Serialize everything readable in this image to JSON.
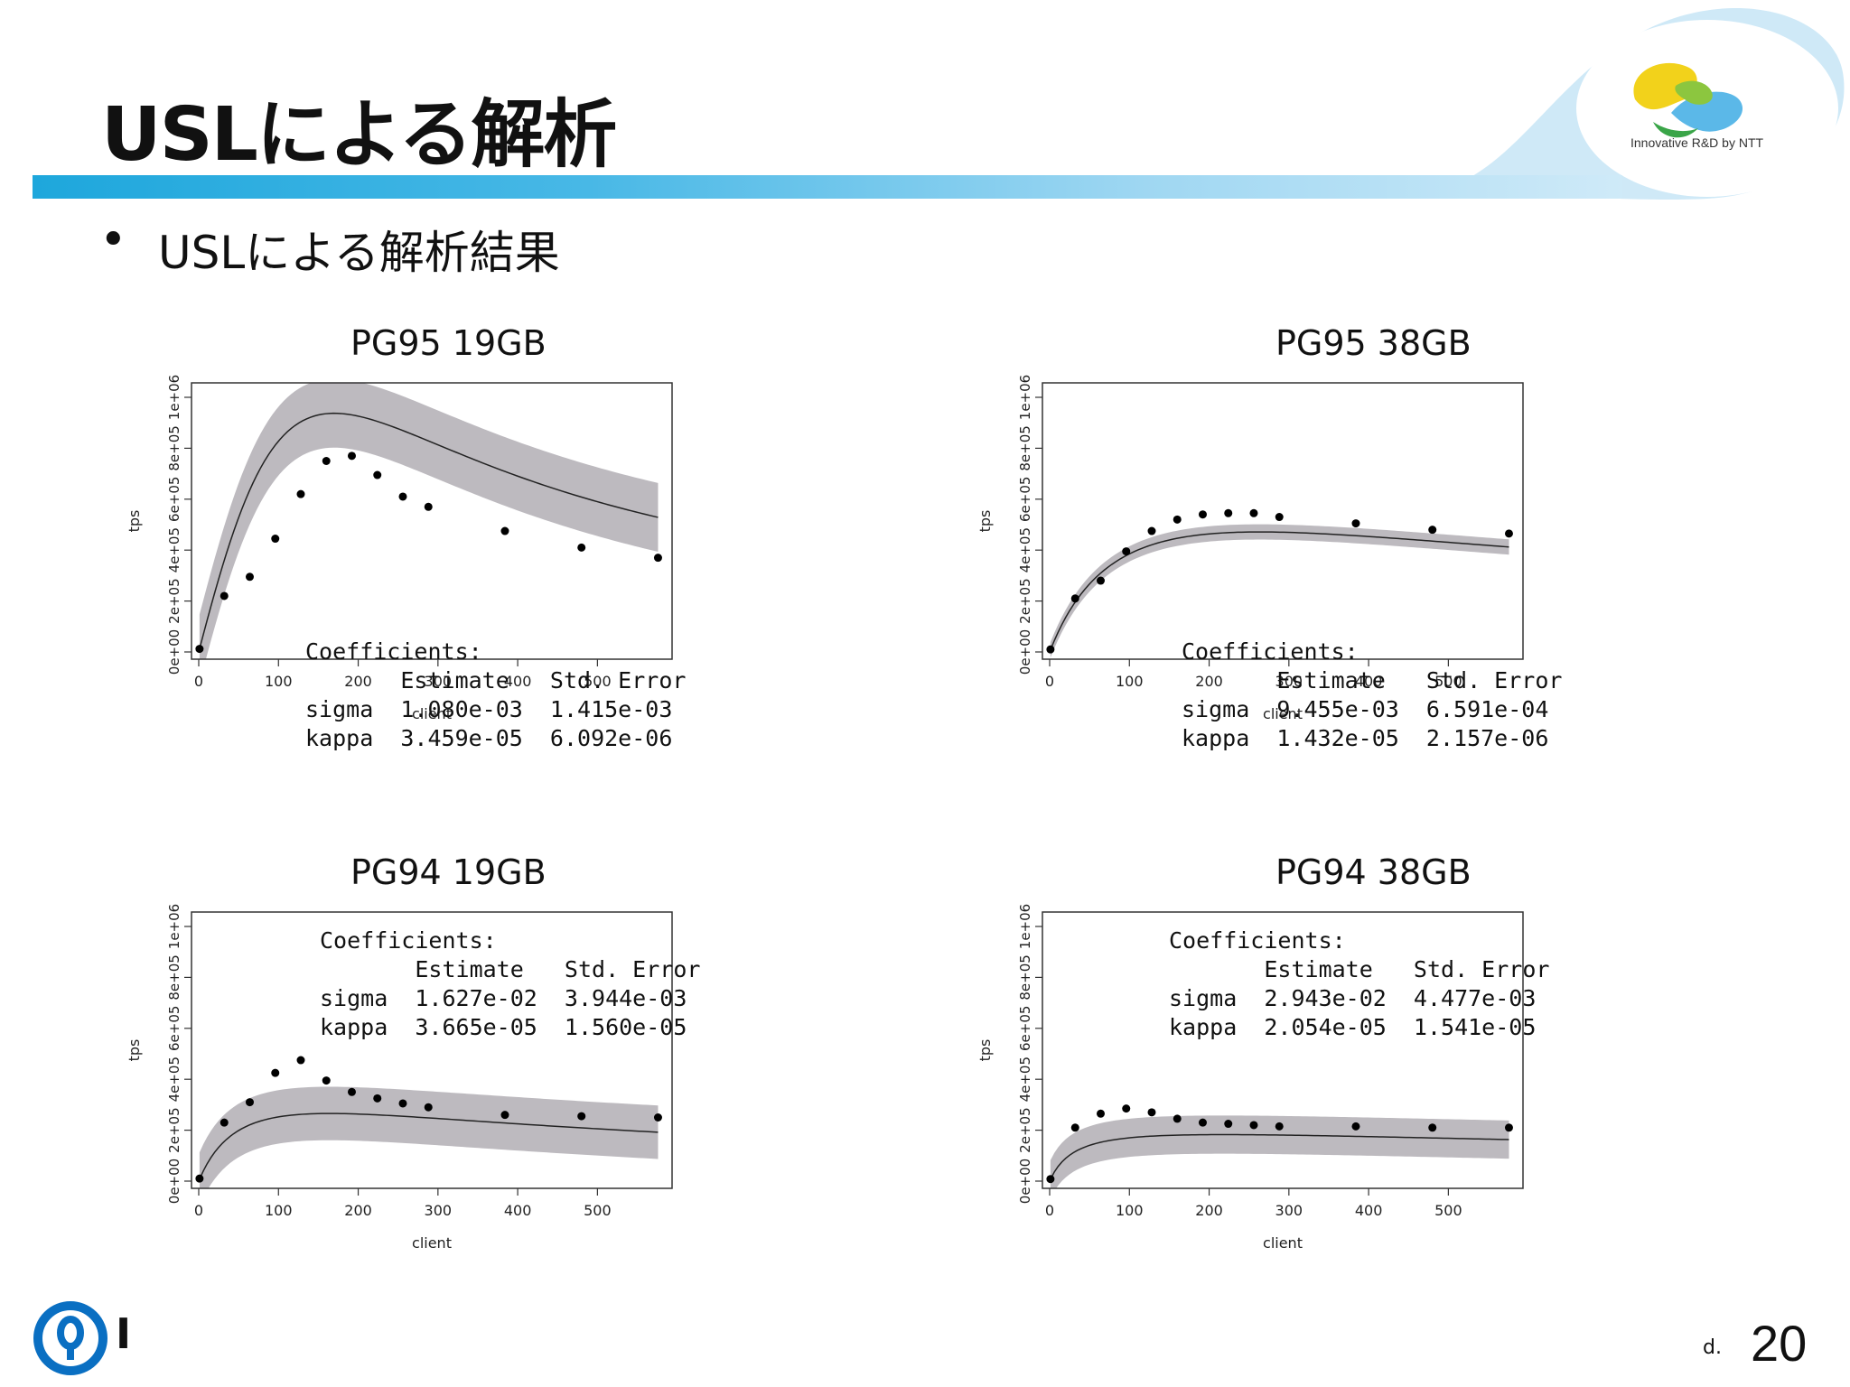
{
  "slide": {
    "title": "USLによる解析",
    "bullet": "USLによる解析結果",
    "logo_text": "Innovative R&D by NTT",
    "footer_char": "I",
    "footer_mark": "d.",
    "page_number": "20"
  },
  "chart_data": [
    {
      "type": "scatter",
      "title": "PG95 19GB",
      "xlabel": "client",
      "ylabel": "tps",
      "xlim": [
        0,
        580
      ],
      "ylim": [
        0,
        1000000
      ],
      "x_ticks": [
        "0",
        "100",
        "200",
        "300",
        "400",
        "500"
      ],
      "y_ticks": [
        "0e+00",
        "2e+05",
        "4e+05",
        "6e+05",
        "8e+05",
        "1e+06"
      ],
      "x": [
        1,
        32,
        64,
        96,
        128,
        160,
        192,
        224,
        256,
        288,
        384,
        480,
        576
      ],
      "y": [
        12000,
        220000,
        295000,
        445000,
        620000,
        750000,
        770000,
        695000,
        610000,
        570000,
        475000,
        410000,
        370000
      ],
      "model": {
        "lambda": 12000,
        "sigma": 0.00108,
        "kappa": 3.459e-05,
        "band_halfwidth": 135000
      },
      "coefficients": {
        "heading": "Coefficients:",
        "columns": [
          "Estimate",
          "Std. Error"
        ],
        "rows": [
          {
            "name": "sigma",
            "estimate": "1.080e-03",
            "std_error": "1.415e-03"
          },
          {
            "name": "kappa",
            "estimate": "3.459e-05",
            "std_error": "6.092e-06"
          }
        ],
        "placement": "bottom-left"
      }
    },
    {
      "type": "scatter",
      "title": "PG95 38GB",
      "xlabel": "client",
      "ylabel": "tps",
      "xlim": [
        0,
        580
      ],
      "ylim": [
        0,
        1000000
      ],
      "x_ticks": [
        "0",
        "100",
        "200",
        "300",
        "400",
        "500"
      ],
      "y_ticks": [
        "0e+00",
        "2e+05",
        "4e+05",
        "6e+05",
        "8e+05",
        "1e+06"
      ],
      "x": [
        1,
        32,
        64,
        96,
        128,
        160,
        192,
        224,
        256,
        288,
        384,
        480,
        576
      ],
      "y": [
        10000,
        210000,
        280000,
        395000,
        475000,
        520000,
        540000,
        545000,
        545000,
        530000,
        505000,
        480000,
        465000
      ],
      "model": {
        "lambda": 8000,
        "sigma": 0.009455,
        "kappa": 1.432e-05,
        "band_halfwidth": 30000
      },
      "coefficients": {
        "heading": "Coefficients:",
        "columns": [
          "Estimate",
          "Std. Error"
        ],
        "rows": [
          {
            "name": "sigma",
            "estimate": "9.455e-03",
            "std_error": "6.591e-04"
          },
          {
            "name": "kappa",
            "estimate": "1.432e-05",
            "std_error": "2.157e-06"
          }
        ],
        "placement": "bottom-left"
      }
    },
    {
      "type": "scatter",
      "title": "PG94 19GB",
      "xlabel": "client",
      "ylabel": "tps",
      "xlim": [
        0,
        580
      ],
      "ylim": [
        0,
        1000000
      ],
      "x_ticks": [
        "0",
        "100",
        "200",
        "300",
        "400",
        "500"
      ],
      "y_ticks": [
        "0e+00",
        "2e+05",
        "4e+05",
        "6e+05",
        "8e+05",
        "1e+06"
      ],
      "x": [
        1,
        32,
        64,
        96,
        128,
        160,
        192,
        224,
        256,
        288,
        384,
        480,
        576
      ],
      "y": [
        10000,
        230000,
        310000,
        425000,
        475000,
        395000,
        350000,
        325000,
        305000,
        290000,
        260000,
        255000,
        250000
      ],
      "model": {
        "lambda": 7500,
        "sigma": 0.01627,
        "kappa": 3.665e-05,
        "band_halfwidth": 105000
      },
      "coefficients": {
        "heading": "Coefficients:",
        "columns": [
          "Estimate",
          "Std. Error"
        ],
        "rows": [
          {
            "name": "sigma",
            "estimate": "1.627e-02",
            "std_error": "3.944e-03"
          },
          {
            "name": "kappa",
            "estimate": "3.665e-05",
            "std_error": "1.560e-05"
          }
        ],
        "placement": "top-left"
      }
    },
    {
      "type": "scatter",
      "title": "PG94 38GB",
      "xlabel": "client",
      "ylabel": "tps",
      "xlim": [
        0,
        580
      ],
      "ylim": [
        0,
        1000000
      ],
      "x_ticks": [
        "0",
        "100",
        "200",
        "300",
        "400",
        "500"
      ],
      "y_ticks": [
        "0e+00",
        "2e+05",
        "4e+05",
        "6e+05",
        "8e+05",
        "1e+06"
      ],
      "x": [
        1,
        32,
        64,
        96,
        128,
        160,
        192,
        224,
        256,
        288,
        384,
        480,
        576
      ],
      "y": [
        8000,
        210000,
        265000,
        285000,
        270000,
        245000,
        230000,
        225000,
        220000,
        215000,
        215000,
        210000,
        210000
      ],
      "model": {
        "lambda": 7000,
        "sigma": 0.02943,
        "kappa": 2.054e-05,
        "band_halfwidth": 75000
      },
      "coefficients": {
        "heading": "Coefficients:",
        "columns": [
          "Estimate",
          "Std. Error"
        ],
        "rows": [
          {
            "name": "sigma",
            "estimate": "2.943e-02",
            "std_error": "4.477e-03"
          },
          {
            "name": "kappa",
            "estimate": "2.054e-05",
            "std_error": "1.541e-05"
          }
        ],
        "placement": "top-left"
      }
    }
  ]
}
